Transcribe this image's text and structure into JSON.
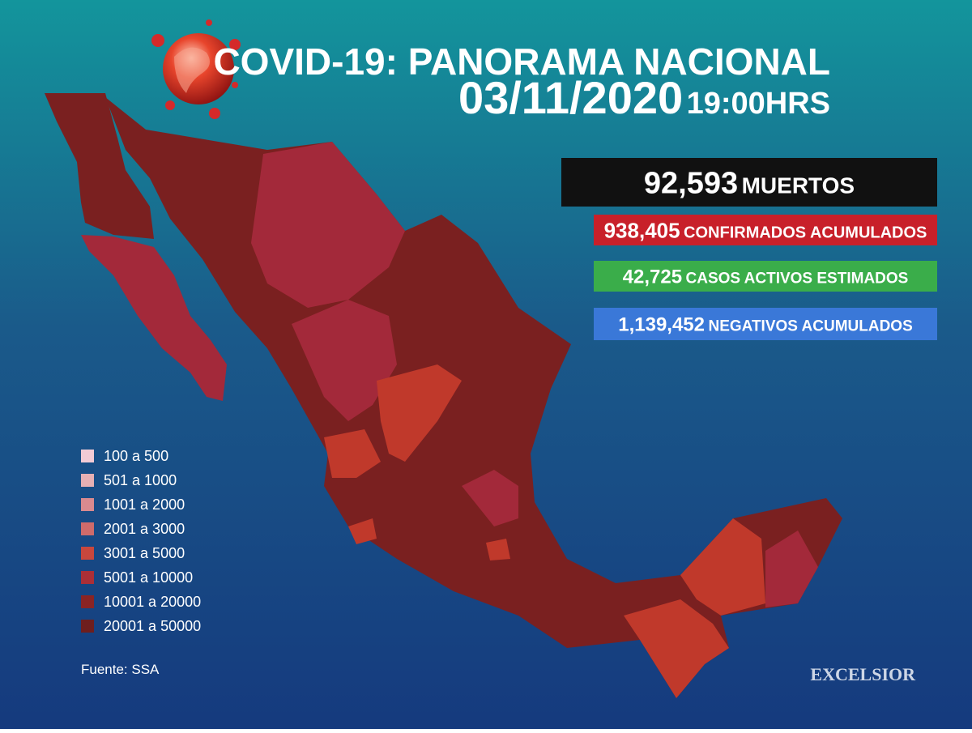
{
  "header": {
    "title": "COVID-19: PANORAMA NACIONAL",
    "date": "03/11/2020",
    "time": "19:00HRS"
  },
  "stats": [
    {
      "number": "92,593",
      "label": "MUERTOS",
      "color": "#111111"
    },
    {
      "number": "938,405",
      "label": "CONFIRMADOS ACUMULADOS",
      "color": "#c8202a"
    },
    {
      "number": "42,725",
      "label": "CASOS ACTIVOS ESTIMADOS",
      "color": "#3aad4a"
    },
    {
      "number": "1,139,452",
      "label": "NEGATIVOS ACUMULADOS",
      "color": "#3a78d8"
    }
  ],
  "legend": [
    {
      "label": "100 a 500",
      "color": "#f2cbd5"
    },
    {
      "label": "501 a 1000",
      "color": "#e6b0b4"
    },
    {
      "label": "1001 a 2000",
      "color": "#d98a8f"
    },
    {
      "label": "2001 a 3000",
      "color": "#cf6b6b"
    },
    {
      "label": "3001 a 5000",
      "color": "#c8473d"
    },
    {
      "label": "5001 a 10000",
      "color": "#ab2f37"
    },
    {
      "label": "10001 a 20000",
      "color": "#8a2424"
    },
    {
      "label": "20001 a 50000",
      "color": "#6e1e1e"
    }
  ],
  "source": "Fuente: SSA",
  "brand": "EXCELSIOR"
}
